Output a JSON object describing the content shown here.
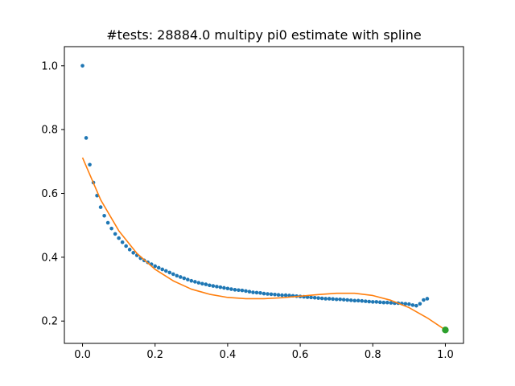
{
  "chart_data": {
    "type": "scatter",
    "title": "#tests: 28884.0 multipy pi0 estimate with spline",
    "xlabel": "",
    "ylabel": "",
    "xlim": [
      -0.05,
      1.05
    ],
    "ylim": [
      0.13,
      1.06
    ],
    "x_ticks": [
      "0.0",
      "0.2",
      "0.4",
      "0.6",
      "0.8",
      "1.0"
    ],
    "y_ticks": [
      "0.2",
      "0.4",
      "0.6",
      "0.8",
      "1.0"
    ],
    "grid": false,
    "legend": "none",
    "series": [
      {
        "kind": "scatter",
        "color": "#1f77b4",
        "x": [
          0.0,
          0.01,
          0.02,
          0.03,
          0.04,
          0.05,
          0.06,
          0.07,
          0.08,
          0.09,
          0.1,
          0.11,
          0.12,
          0.13,
          0.14,
          0.15,
          0.16,
          0.17,
          0.18,
          0.19,
          0.2,
          0.21,
          0.22,
          0.23,
          0.24,
          0.25,
          0.26,
          0.27,
          0.28,
          0.29,
          0.3,
          0.31,
          0.32,
          0.33,
          0.34,
          0.35,
          0.36,
          0.37,
          0.38,
          0.39,
          0.4,
          0.41,
          0.42,
          0.43,
          0.44,
          0.45,
          0.46,
          0.47,
          0.48,
          0.49,
          0.5,
          0.51,
          0.52,
          0.53,
          0.54,
          0.55,
          0.56,
          0.57,
          0.58,
          0.59,
          0.6,
          0.61,
          0.62,
          0.63,
          0.64,
          0.65,
          0.66,
          0.67,
          0.68,
          0.69,
          0.7,
          0.71,
          0.72,
          0.73,
          0.74,
          0.75,
          0.76,
          0.77,
          0.78,
          0.79,
          0.8,
          0.81,
          0.82,
          0.83,
          0.84,
          0.85,
          0.86,
          0.87,
          0.88,
          0.89,
          0.9,
          0.91,
          0.92,
          0.93,
          0.94,
          0.95
        ],
        "y": [
          1.0,
          0.774,
          0.69,
          0.634,
          0.593,
          0.557,
          0.53,
          0.508,
          0.49,
          0.473,
          0.46,
          0.447,
          0.435,
          0.424,
          0.414,
          0.406,
          0.397,
          0.39,
          0.384,
          0.378,
          0.372,
          0.367,
          0.362,
          0.357,
          0.352,
          0.347,
          0.342,
          0.338,
          0.334,
          0.33,
          0.326,
          0.323,
          0.32,
          0.317,
          0.315,
          0.312,
          0.31,
          0.308,
          0.306,
          0.304,
          0.302,
          0.3,
          0.298,
          0.297,
          0.296,
          0.294,
          0.292,
          0.29,
          0.289,
          0.288,
          0.286,
          0.285,
          0.284,
          0.283,
          0.282,
          0.281,
          0.281,
          0.28,
          0.279,
          0.278,
          0.277,
          0.276,
          0.275,
          0.274,
          0.273,
          0.272,
          0.271,
          0.27,
          0.27,
          0.269,
          0.268,
          0.268,
          0.267,
          0.266,
          0.265,
          0.264,
          0.264,
          0.263,
          0.262,
          0.261,
          0.26,
          0.26,
          0.259,
          0.258,
          0.258,
          0.257,
          0.256,
          0.256,
          0.255,
          0.254,
          0.253,
          0.25,
          0.248,
          0.254,
          0.266,
          0.27
        ]
      },
      {
        "kind": "line",
        "color": "#ff7f0e",
        "x": [
          0.0,
          0.05,
          0.1,
          0.15,
          0.2,
          0.25,
          0.3,
          0.35,
          0.4,
          0.45,
          0.5,
          0.55,
          0.6,
          0.65,
          0.7,
          0.75,
          0.8,
          0.85,
          0.9,
          0.95,
          1.0
        ],
        "y": [
          0.712,
          0.58,
          0.483,
          0.412,
          0.362,
          0.326,
          0.3,
          0.284,
          0.274,
          0.27,
          0.27,
          0.273,
          0.278,
          0.283,
          0.287,
          0.287,
          0.28,
          0.265,
          0.242,
          0.21,
          0.172
        ]
      },
      {
        "kind": "point",
        "color": "#2ca02c",
        "x": [
          1.0
        ],
        "y": [
          0.172
        ]
      }
    ]
  }
}
